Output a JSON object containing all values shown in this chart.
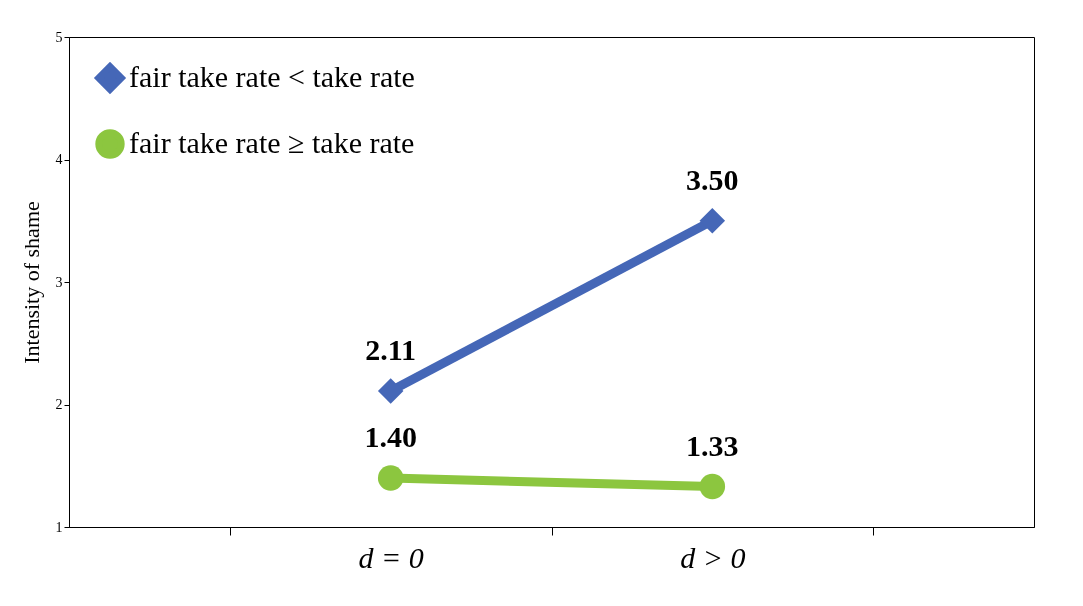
{
  "chart_data": {
    "type": "line",
    "ylabel": "Intensity of shame",
    "categories": [
      "d = 0",
      "d > 0"
    ],
    "series": [
      {
        "name": "fair take rate < take rate",
        "color": "#4567b7",
        "marker": "diamond",
        "values": [
          2.11,
          3.5
        ],
        "value_labels": [
          "2.11",
          "3.50"
        ]
      },
      {
        "name": "fair take rate ≥ take rate",
        "color": "#8cc63f",
        "marker": "circle",
        "values": [
          1.4,
          1.33
        ],
        "value_labels": [
          "1.40",
          "1.33"
        ]
      }
    ],
    "ylim": [
      1,
      5
    ],
    "yticks": [
      1,
      2,
      3,
      4,
      5
    ],
    "grid": false,
    "legend": "top left"
  }
}
